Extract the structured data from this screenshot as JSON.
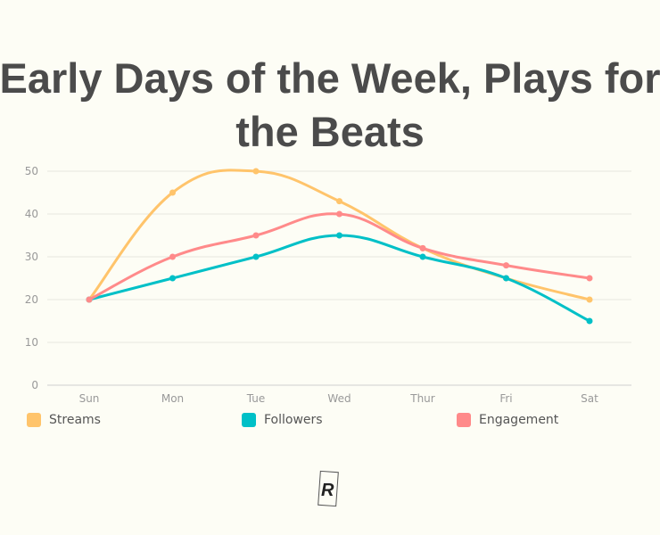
{
  "chart_data": {
    "type": "line",
    "title_lines": [
      "Early Days of the Week, Plays for",
      "the Beats"
    ],
    "categories": [
      "Sun",
      "Mon",
      "Tue",
      "Wed",
      "Thur",
      "Fri",
      "Sat"
    ],
    "y_ticks": [
      "0",
      "10",
      "20",
      "30",
      "40",
      "50"
    ],
    "ylim": [
      0,
      50
    ],
    "grid": true,
    "legend_position": "bottom",
    "series": [
      {
        "name": "Streams",
        "color": "#ffc46b",
        "values": [
          20,
          45,
          50,
          43,
          32,
          25,
          20
        ]
      },
      {
        "name": "Followers",
        "color": "#00c0c7",
        "values": [
          20,
          25,
          30,
          35,
          30,
          25,
          15
        ]
      },
      {
        "name": "Engagement",
        "color": "#ff8a8a",
        "values": [
          20,
          30,
          35,
          40,
          32,
          28,
          25
        ]
      }
    ]
  },
  "logo": {
    "text": "R"
  }
}
